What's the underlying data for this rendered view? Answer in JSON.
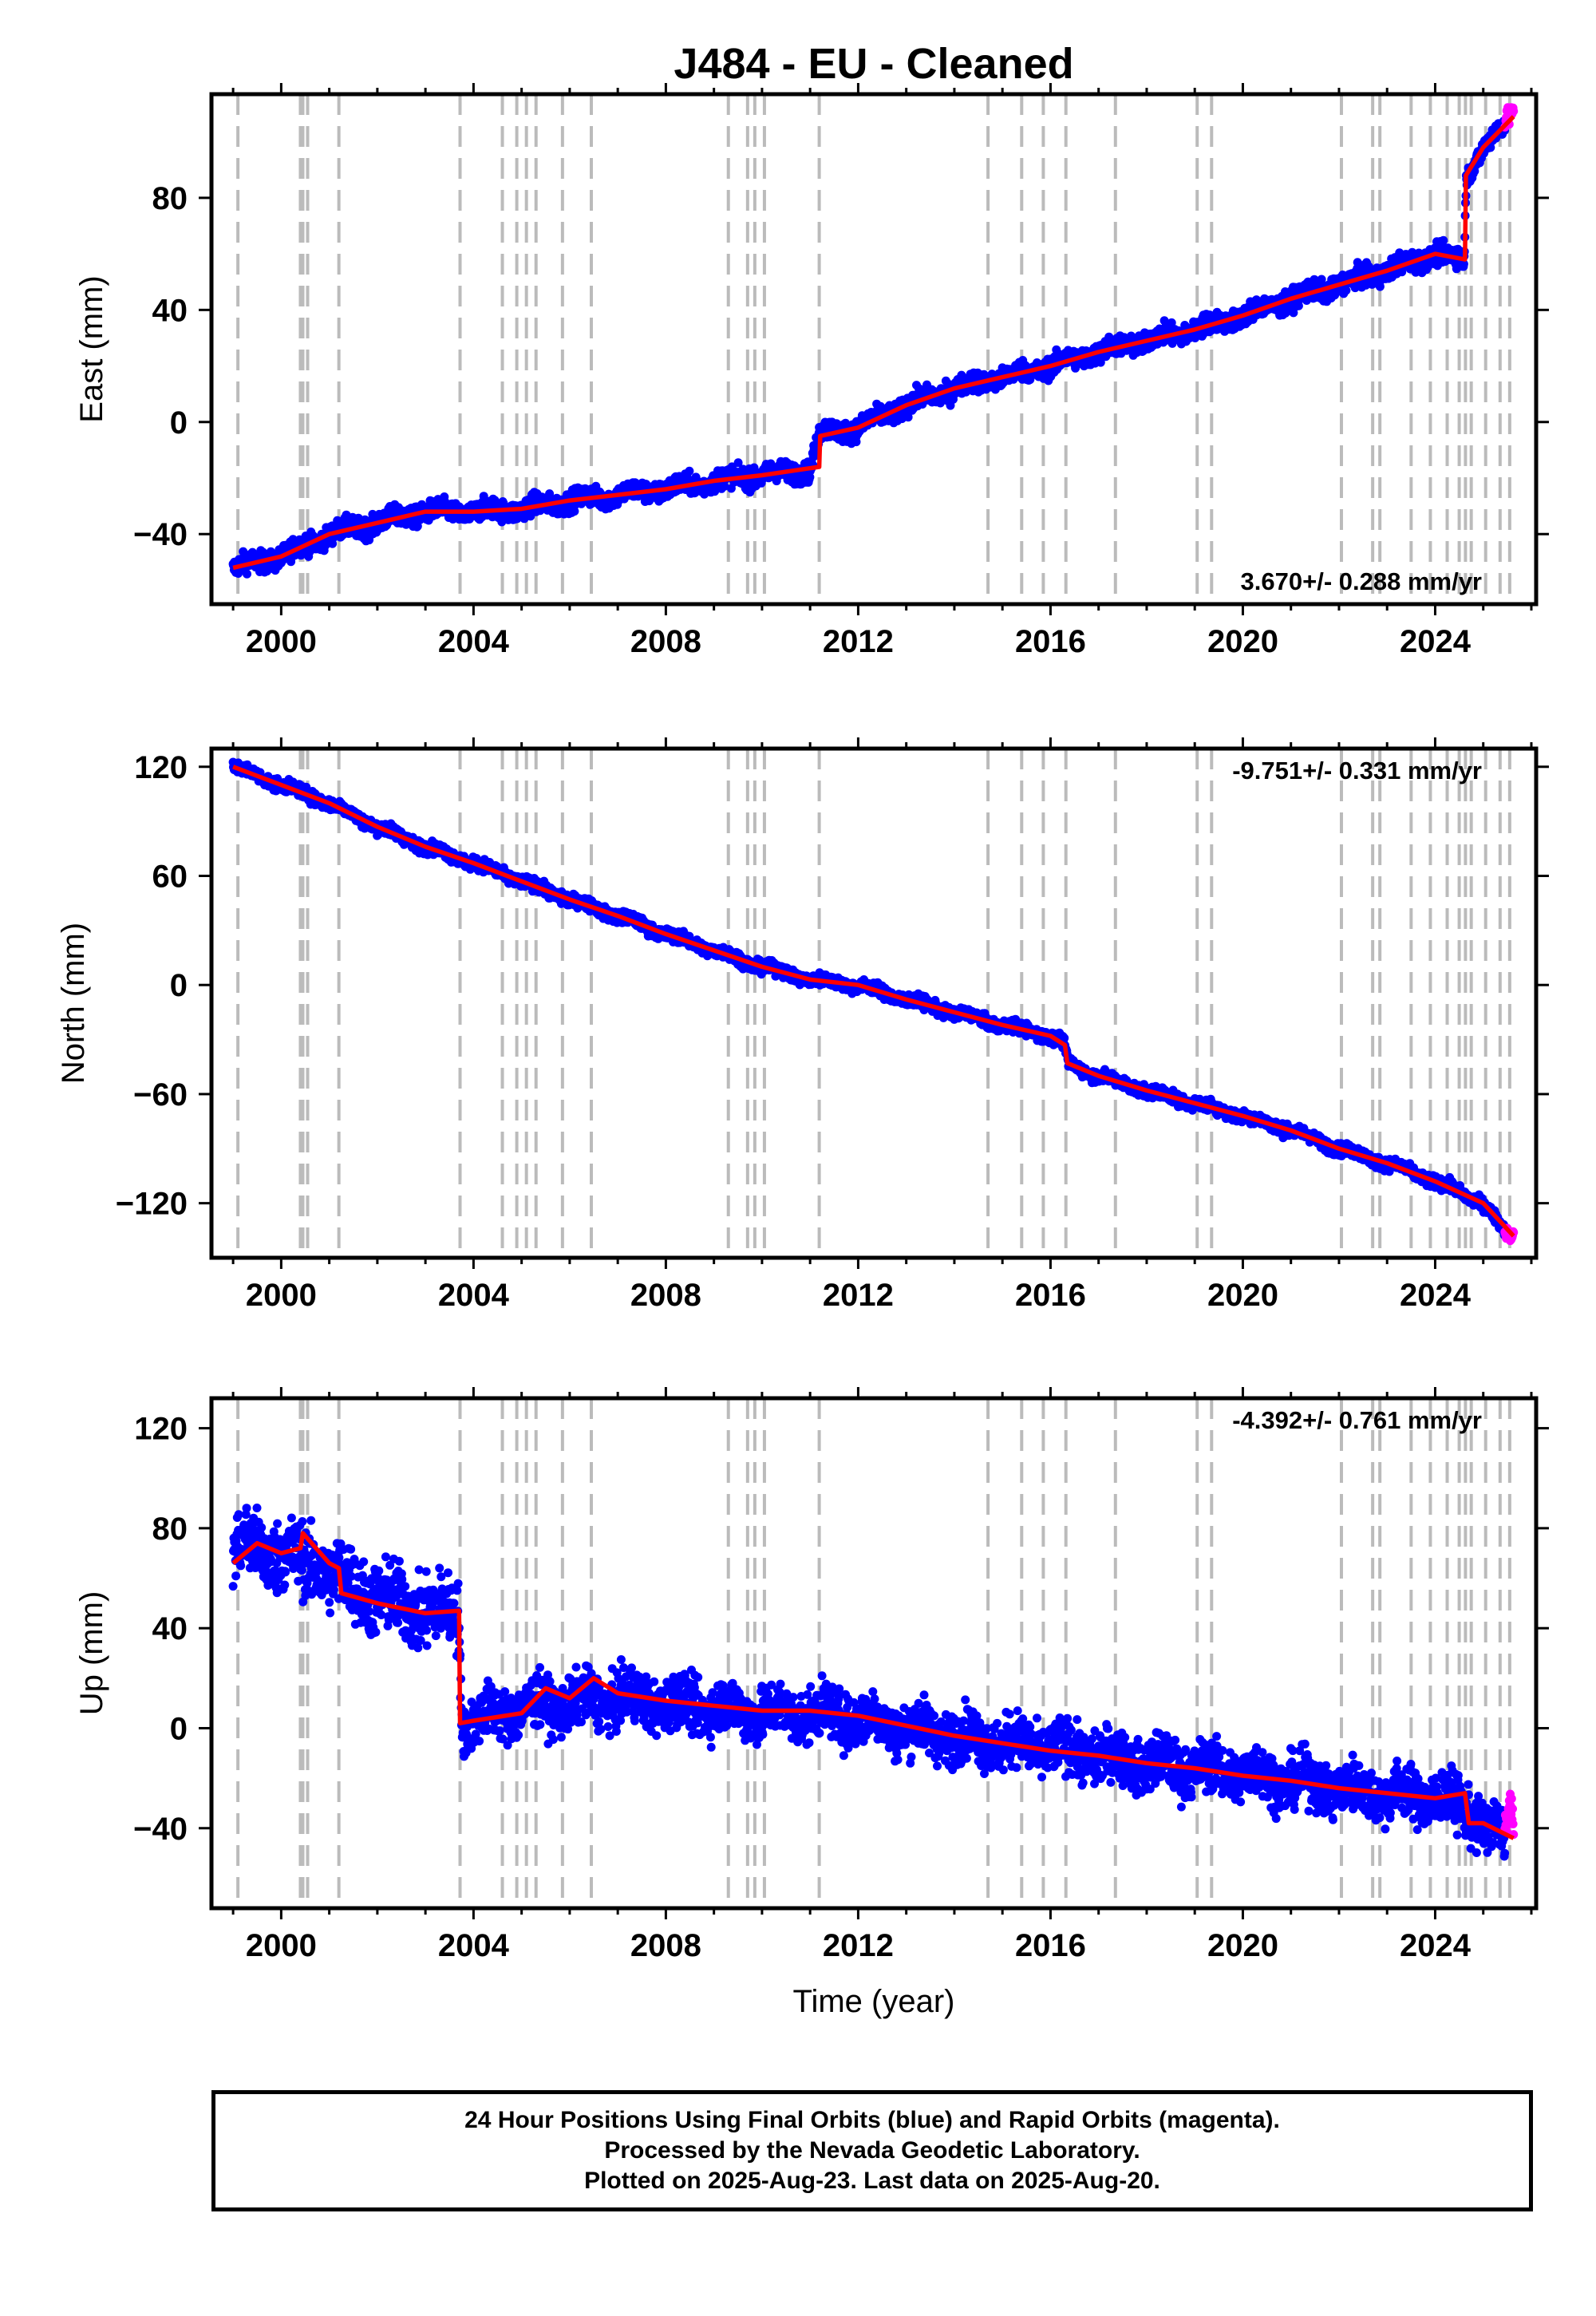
{
  "title": "J484  - EU - Cleaned",
  "colors": {
    "final_orbits": "#0000ff",
    "rapid_orbits": "#ff00ff",
    "model_fit": "#ff0000",
    "event_lines": "#bbbbbb",
    "frame": "#000000"
  },
  "chart_data": [
    {
      "type": "scatter",
      "component": "East",
      "ylabel": "East (mm)",
      "xlabel": "",
      "xlim": [
        1998.55,
        2026.1
      ],
      "ylim": [
        -65,
        117
      ],
      "xticks": [
        "2000",
        "2004",
        "2008",
        "2012",
        "2016",
        "2020",
        "2024"
      ],
      "yticks": [
        "80",
        "40",
        "0",
        "-40"
      ],
      "rate_label": "3.670+/- 0.288 mm/yr",
      "rate_position": "bottom-right",
      "series": [
        {
          "name": "Final Orbits",
          "x": [
            1999.0,
            2000.0,
            2001.0,
            2002.0,
            2003.0,
            2004.0,
            2005.0,
            2006.0,
            2007.0,
            2008.0,
            2009.0,
            2010.0,
            2011.0,
            2011.2,
            2012.0,
            2013.0,
            2014.0,
            2015.0,
            2016.0,
            2017.0,
            2018.0,
            2019.0,
            2020.0,
            2021.0,
            2022.0,
            2023.0,
            2024.0,
            2024.6,
            2024.65,
            2025.0,
            2025.45
          ],
          "y": [
            -52,
            -48,
            -40,
            -36,
            -32,
            -32,
            -31,
            -28,
            -26,
            -24,
            -21,
            -19,
            -17,
            -4,
            -2,
            6,
            12,
            16,
            20,
            25,
            29,
            33,
            38,
            44,
            49,
            54,
            60,
            58,
            88,
            98,
            106
          ]
        },
        {
          "name": "Rapid Orbits",
          "x": [
            2025.45,
            2025.55,
            2025.63
          ],
          "y": [
            106,
            109,
            113
          ]
        }
      ],
      "model": {
        "x": [
          1999.0,
          2000.0,
          2001.0,
          2002.0,
          2003.0,
          2004.0,
          2005.0,
          2006.0,
          2007.0,
          2008.0,
          2009.0,
          2010.0,
          2011.19,
          2011.21,
          2012.0,
          2013.0,
          2014.0,
          2015.0,
          2016.0,
          2017.0,
          2018.0,
          2019.0,
          2020.0,
          2021.0,
          2022.0,
          2023.0,
          2024.0,
          2024.62,
          2024.64,
          2025.0,
          2025.63
        ],
        "y": [
          -52,
          -48,
          -40,
          -36,
          -32,
          -32,
          -31,
          -28,
          -26,
          -24,
          -21,
          -19,
          -16,
          -5,
          -2,
          6,
          12,
          16,
          20,
          25,
          29,
          33,
          38,
          44,
          49,
          54,
          60,
          58,
          88,
          98,
          109
        ]
      }
    },
    {
      "type": "scatter",
      "component": "North",
      "ylabel": "North (mm)",
      "xlabel": "",
      "xlim": [
        1998.55,
        2026.1
      ],
      "ylim": [
        -150,
        130
      ],
      "xticks": [
        "2000",
        "2004",
        "2008",
        "2012",
        "2016",
        "2020",
        "2024"
      ],
      "yticks": [
        "120",
        "60",
        "0",
        "-60",
        "-120"
      ],
      "rate_label": "-9.751+/- 0.331 mm/yr",
      "rate_position": "top-right",
      "series": [
        {
          "name": "Final Orbits",
          "x": [
            1999.0,
            2000.0,
            2001.0,
            2002.0,
            2003.0,
            2004.0,
            2005.0,
            2006.0,
            2007.0,
            2008.0,
            2009.0,
            2010.0,
            2011.0,
            2012.0,
            2013.0,
            2014.0,
            2015.0,
            2016.0,
            2016.3,
            2016.35,
            2017.0,
            2018.0,
            2019.0,
            2020.0,
            2021.0,
            2022.0,
            2023.0,
            2024.0,
            2025.0,
            2025.45
          ],
          "y": [
            120,
            110,
            100,
            87,
            76,
            67,
            57,
            47,
            38,
            28,
            19,
            10,
            3,
            0,
            -8,
            -15,
            -22,
            -28,
            -33,
            -43,
            -50,
            -58,
            -65,
            -72,
            -80,
            -90,
            -98,
            -108,
            -120,
            -136
          ]
        },
        {
          "name": "Rapid Orbits",
          "x": [
            2025.45,
            2025.55,
            2025.63
          ],
          "y": [
            -136,
            -138,
            -138
          ]
        }
      ],
      "model": {
        "x": [
          1999.0,
          2000.0,
          2001.0,
          2002.0,
          2003.0,
          2004.0,
          2005.0,
          2006.0,
          2007.0,
          2008.0,
          2009.0,
          2010.0,
          2011.0,
          2012.0,
          2013.0,
          2014.0,
          2015.0,
          2016.0,
          2016.3,
          2016.35,
          2017.0,
          2018.0,
          2019.0,
          2020.0,
          2021.0,
          2022.0,
          2023.0,
          2024.0,
          2025.0,
          2025.63
        ],
        "y": [
          120,
          110,
          100,
          87,
          76,
          67,
          57,
          47,
          38,
          28,
          19,
          10,
          3,
          0,
          -8,
          -15,
          -22,
          -28,
          -33,
          -43,
          -50,
          -58,
          -65,
          -72,
          -80,
          -90,
          -98,
          -108,
          -120,
          -138
        ]
      }
    },
    {
      "type": "scatter",
      "component": "Up",
      "ylabel": "Up (mm)",
      "xlabel": "Time (year)",
      "xlim": [
        1998.55,
        2026.1
      ],
      "ylim": [
        -72,
        132
      ],
      "xticks": [
        "2000",
        "2004",
        "2008",
        "2012",
        "2016",
        "2020",
        "2024"
      ],
      "yticks": [
        "120",
        "80",
        "40",
        "0",
        "-40"
      ],
      "rate_label": "-4.392+/- 0.761 mm/yr",
      "rate_position": "top-right",
      "series": [
        {
          "name": "Final Orbits",
          "x": [
            1999.0,
            2000.0,
            2001.0,
            2002.0,
            2003.0,
            2003.7,
            2003.75,
            2004.0,
            2005.0,
            2006.0,
            2007.0,
            2008.0,
            2009.0,
            2010.0,
            2011.0,
            2012.0,
            2013.0,
            2014.0,
            2015.0,
            2016.0,
            2017.0,
            2018.0,
            2019.0,
            2020.0,
            2021.0,
            2022.0,
            2023.0,
            2024.0,
            2024.6,
            2025.0,
            2025.45
          ],
          "y": [
            73,
            70,
            62,
            52,
            47,
            46,
            2,
            3,
            8,
            10,
            12,
            10,
            8,
            6,
            6,
            4,
            0,
            -3,
            -6,
            -8,
            -11,
            -14,
            -16,
            -18,
            -21,
            -24,
            -26,
            -28,
            -32,
            -38,
            -44
          ]
        },
        {
          "name": "Rapid Orbits",
          "x": [
            2025.45,
            2025.55,
            2025.63
          ],
          "y": [
            -44,
            -30,
            -40
          ]
        }
      ],
      "model": {
        "x": [
          1999.0,
          1999.5,
          2000.0,
          2000.4,
          2000.45,
          2001.0,
          2001.2,
          2001.25,
          2002.0,
          2003.0,
          2003.7,
          2003.72,
          2004.0,
          2005.0,
          2005.5,
          2006.0,
          2006.5,
          2007.0,
          2008.0,
          2009.0,
          2010.0,
          2011.0,
          2012.0,
          2013.0,
          2014.0,
          2015.0,
          2016.0,
          2017.0,
          2018.0,
          2019.0,
          2020.0,
          2021.0,
          2022.0,
          2023.0,
          2024.0,
          2024.62,
          2024.7,
          2025.0,
          2025.63
        ],
        "y": [
          66,
          74,
          70,
          72,
          78,
          66,
          64,
          54,
          50,
          46,
          47,
          2,
          3,
          6,
          16,
          12,
          20,
          14,
          11,
          9,
          7,
          7,
          5,
          1,
          -3,
          -6,
          -9,
          -11,
          -14,
          -16,
          -19,
          -21,
          -24,
          -26,
          -28,
          -26,
          -38,
          -38,
          -44
        ]
      }
    }
  ],
  "event_lines_years": [
    1999.1,
    2000.4,
    2000.45,
    2000.55,
    2001.2,
    2003.72,
    2004.6,
    2004.9,
    2005.1,
    2005.3,
    2005.85,
    2006.45,
    2009.3,
    2009.7,
    2009.85,
    2010.05,
    2011.19,
    2014.7,
    2015.4,
    2015.85,
    2016.32,
    2017.35,
    2019.05,
    2019.35,
    2022.05,
    2022.7,
    2022.85,
    2023.5,
    2023.9,
    2024.25,
    2024.5,
    2024.63,
    2024.75,
    2025.05,
    2025.35,
    2025.55
  ],
  "footer": {
    "line1": "24 Hour Positions Using Final Orbits (blue) and Rapid Orbits (magenta).",
    "line2": "Processed by the Nevada Geodetic Laboratory.",
    "line3": "Plotted on 2025-Aug-23. Last data on 2025-Aug-20."
  }
}
